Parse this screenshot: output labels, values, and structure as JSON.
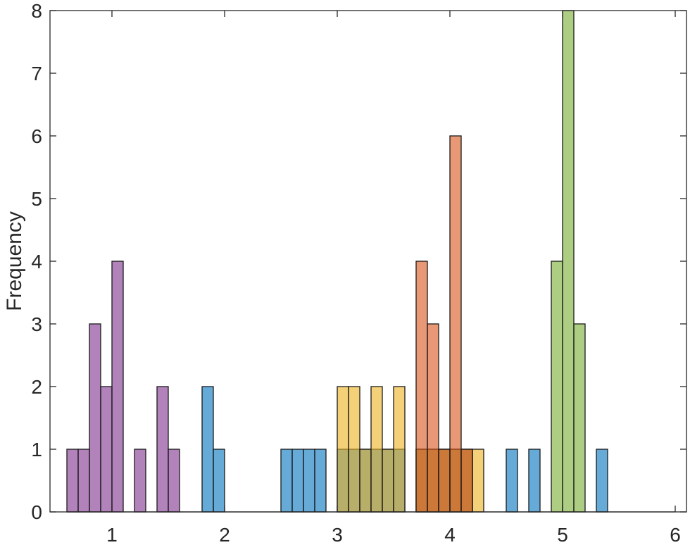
{
  "chart_data": {
    "type": "bar",
    "subtype": "overlapping histograms",
    "xlabel": "",
    "ylabel": "Frequency",
    "xlim": [
      0.45,
      6.1
    ],
    "ylim": [
      0,
      8
    ],
    "xticks": [
      "1",
      "2",
      "3",
      "4",
      "5",
      "6"
    ],
    "yticks": [
      "0",
      "1",
      "2",
      "3",
      "4",
      "5",
      "6",
      "7",
      "8"
    ],
    "grid": false,
    "bin_width": 0.1,
    "series": [
      {
        "color": "#7E2F8E",
        "bins": [
          {
            "x0": 0.6,
            "count": 1
          },
          {
            "x0": 0.7,
            "count": 1
          },
          {
            "x0": 0.8,
            "count": 3
          },
          {
            "x0": 0.9,
            "count": 2
          },
          {
            "x0": 1.0,
            "count": 4
          },
          {
            "x0": 1.2,
            "count": 1
          },
          {
            "x0": 1.4,
            "count": 2
          },
          {
            "x0": 1.5,
            "count": 1
          }
        ]
      },
      {
        "color": "#0072BD",
        "bins": [
          {
            "x0": 1.8,
            "count": 2
          },
          {
            "x0": 1.9,
            "count": 1
          },
          {
            "x0": 2.5,
            "count": 1
          },
          {
            "x0": 2.6,
            "count": 1
          },
          {
            "x0": 2.7,
            "count": 1
          },
          {
            "x0": 2.8,
            "count": 1
          },
          {
            "x0": 3.0,
            "count": 1
          },
          {
            "x0": 3.1,
            "count": 1
          },
          {
            "x0": 3.2,
            "count": 1
          },
          {
            "x0": 3.3,
            "count": 1
          },
          {
            "x0": 3.4,
            "count": 1
          },
          {
            "x0": 3.5,
            "count": 1
          },
          {
            "x0": 3.7,
            "count": 1
          },
          {
            "x0": 3.8,
            "count": 1
          },
          {
            "x0": 3.9,
            "count": 1
          },
          {
            "x0": 4.0,
            "count": 1
          },
          {
            "x0": 4.1,
            "count": 1
          },
          {
            "x0": 4.5,
            "count": 1
          },
          {
            "x0": 4.7,
            "count": 1
          },
          {
            "x0": 5.3,
            "count": 1
          }
        ]
      },
      {
        "color": "#EDB120",
        "bins": [
          {
            "x0": 3.0,
            "count": 2
          },
          {
            "x0": 3.1,
            "count": 2
          },
          {
            "x0": 3.2,
            "count": 1
          },
          {
            "x0": 3.3,
            "count": 2
          },
          {
            "x0": 3.4,
            "count": 1
          },
          {
            "x0": 3.5,
            "count": 2
          },
          {
            "x0": 3.7,
            "count": 1
          },
          {
            "x0": 3.8,
            "count": 1
          },
          {
            "x0": 3.9,
            "count": 1
          },
          {
            "x0": 4.0,
            "count": 1
          },
          {
            "x0": 4.1,
            "count": 1
          },
          {
            "x0": 4.2,
            "count": 1
          }
        ]
      },
      {
        "color": "#D95319",
        "bins": [
          {
            "x0": 3.7,
            "count": 4
          },
          {
            "x0": 3.8,
            "count": 3
          },
          {
            "x0": 3.9,
            "count": 1
          },
          {
            "x0": 4.0,
            "count": 6
          },
          {
            "x0": 4.1,
            "count": 1
          }
        ]
      },
      {
        "color": "#77AC30",
        "bins": [
          {
            "x0": 4.9,
            "count": 4
          },
          {
            "x0": 5.0,
            "count": 8
          },
          {
            "x0": 5.1,
            "count": 3
          }
        ]
      }
    ]
  },
  "style": {
    "bar_opacity": 0.6,
    "axis_color": "#262626",
    "background": "#ffffff"
  }
}
